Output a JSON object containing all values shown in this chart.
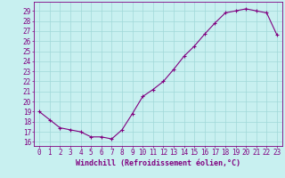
{
  "x": [
    0,
    1,
    2,
    3,
    4,
    5,
    6,
    7,
    8,
    9,
    10,
    11,
    12,
    13,
    14,
    15,
    16,
    17,
    18,
    19,
    20,
    21,
    22,
    23
  ],
  "y": [
    19.0,
    18.2,
    17.4,
    17.2,
    17.0,
    16.5,
    16.5,
    16.3,
    17.2,
    18.8,
    20.5,
    21.2,
    22.0,
    23.2,
    24.5,
    25.5,
    26.7,
    27.8,
    28.8,
    29.0,
    29.2,
    29.0,
    28.8,
    26.6
  ],
  "line_color": "#800080",
  "marker": "+",
  "marker_size": 3,
  "marker_linewidth": 0.8,
  "line_width": 0.8,
  "bg_color": "#c8f0f0",
  "grid_color": "#a0d8d8",
  "tick_color": "#800080",
  "label_color": "#800080",
  "xlabel": "Windchill (Refroidissement éolien,°C)",
  "ylabel_ticks": [
    16,
    17,
    18,
    19,
    20,
    21,
    22,
    23,
    24,
    25,
    26,
    27,
    28,
    29
  ],
  "xlim": [
    -0.5,
    23.5
  ],
  "ylim": [
    15.6,
    29.9
  ],
  "tick_fontsize": 5.5,
  "xlabel_fontsize": 6.0
}
